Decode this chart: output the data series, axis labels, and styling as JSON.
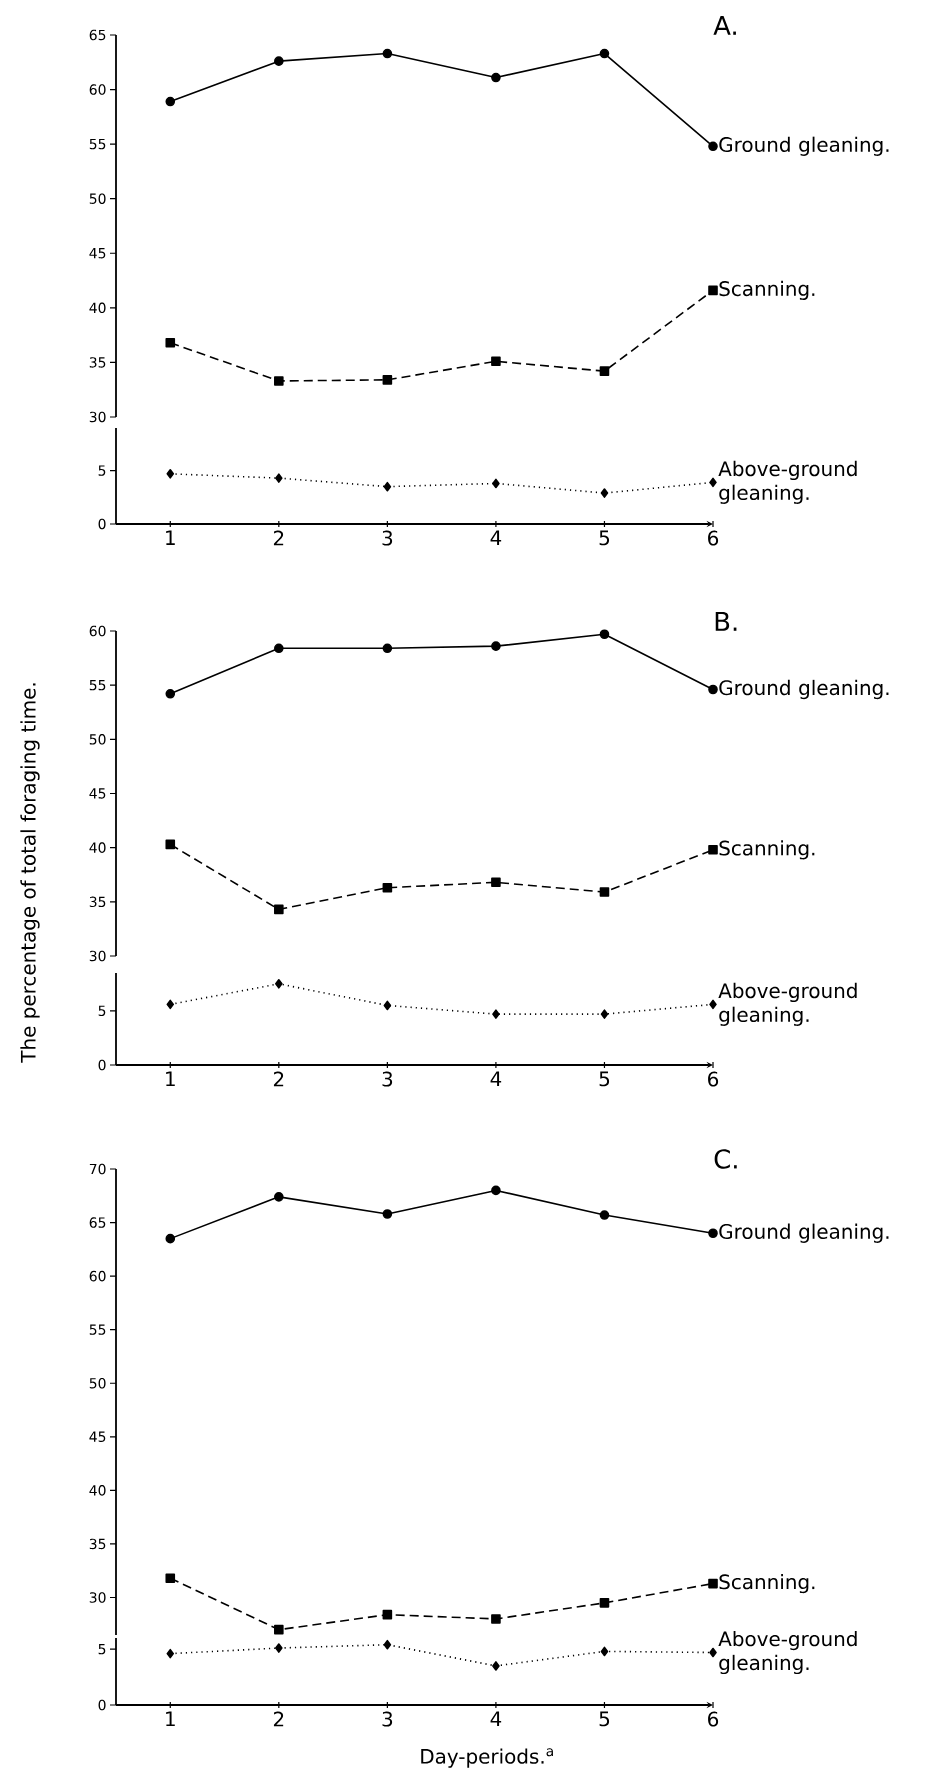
{
  "chart_data": [
    {
      "type": "line",
      "title": "A.",
      "x": [
        1,
        2,
        3,
        4,
        5,
        6
      ],
      "xlim": [
        0.5,
        6
      ],
      "ylim": [
        30,
        65
      ],
      "yticks": [
        30,
        35,
        40,
        45,
        50,
        55,
        60,
        65
      ],
      "tick_labels": "y",
      "series": [
        {
          "name": "Ground gleaning.",
          "color": "#000000",
          "marker": "circle",
          "line_style": "solid",
          "values": [
            58.9,
            62.6,
            63.3,
            61.1,
            63.3,
            54.8
          ]
        },
        {
          "name": "Scanning.",
          "color": "#000000",
          "marker": "square",
          "line_style": "dashed",
          "values": [
            36.8,
            33.3,
            33.4,
            35.1,
            34.2,
            41.6
          ]
        }
      ]
    },
    {
      "type": "line",
      "x": [
        1,
        2,
        3,
        4,
        5,
        6
      ],
      "xlim": [
        0.5,
        6
      ],
      "xticks": [
        1,
        2,
        3,
        4,
        5,
        6
      ],
      "ylim": [
        0,
        9
      ],
      "yticks": [
        0,
        5
      ],
      "series": [
        {
          "name": "Above-ground gleaning.",
          "color": "#000000",
          "marker": "diamond",
          "line_style": "dotted",
          "values": [
            4.7,
            4.3,
            3.5,
            3.8,
            2.9,
            3.9
          ]
        }
      ]
    },
    {
      "type": "line",
      "title": "B.",
      "ylabel": "The percentage of total foraging time.",
      "x": [
        1,
        2,
        3,
        4,
        5,
        6
      ],
      "xlim": [
        0.5,
        6
      ],
      "ylim": [
        30,
        60
      ],
      "yticks": [
        30,
        35,
        40,
        45,
        50,
        55,
        60
      ],
      "tick_labels": "y",
      "series": [
        {
          "name": "Ground gleaning.",
          "color": "#000000",
          "marker": "circle",
          "line_style": "solid",
          "values": [
            54.2,
            58.4,
            58.4,
            58.6,
            59.7,
            54.6
          ]
        },
        {
          "name": "Scanning.",
          "color": "#000000",
          "marker": "square",
          "line_style": "dashed",
          "values": [
            40.3,
            34.3,
            36.3,
            36.8,
            35.9,
            39.8
          ]
        }
      ]
    },
    {
      "type": "line",
      "x": [
        1,
        2,
        3,
        4,
        5,
        6
      ],
      "xlim": [
        0.5,
        6
      ],
      "xticks": [
        1,
        2,
        3,
        4,
        5,
        6
      ],
      "ylim": [
        0,
        8.5
      ],
      "yticks": [
        0,
        5
      ],
      "series": [
        {
          "name": "Above-ground gleaning.",
          "color": "#000000",
          "marker": "diamond",
          "line_style": "dotted",
          "values": [
            5.6,
            7.5,
            5.5,
            4.7,
            4.7,
            5.6
          ]
        }
      ]
    },
    {
      "type": "line",
      "title": "C.",
      "x": [
        1,
        2,
        3,
        4,
        5,
        6
      ],
      "xlim": [
        0.5,
        6
      ],
      "ylim": [
        26.5,
        70
      ],
      "yticks": [
        30,
        35,
        40,
        45,
        50,
        55,
        60,
        65,
        70
      ],
      "tick_labels": "y",
      "series": [
        {
          "name": "Ground gleaning.",
          "color": "#000000",
          "marker": "circle",
          "line_style": "solid",
          "values": [
            63.5,
            67.4,
            65.8,
            68.0,
            65.7,
            64.0
          ]
        },
        {
          "name": "Scanning.",
          "color": "#000000",
          "marker": "square",
          "line_style": "dashed",
          "values": [
            31.8,
            27.0,
            28.4,
            28.0,
            29.5,
            31.3
          ]
        }
      ]
    },
    {
      "type": "line",
      "xlabel": "Day-periods.$^{a}$",
      "x": [
        1,
        2,
        3,
        4,
        5,
        6
      ],
      "xlim": [
        0.5,
        6
      ],
      "xticks": [
        1,
        2,
        3,
        4,
        5,
        6
      ],
      "ylim": [
        0,
        6
      ],
      "yticks": [
        0,
        5
      ],
      "series": [
        {
          "name": "Above-ground gleaning.",
          "color": "#000000",
          "marker": "diamond",
          "line_style": "dotted",
          "values": [
            4.6,
            5.1,
            5.4,
            3.5,
            4.8,
            4.7
          ]
        }
      ]
    }
  ]
}
